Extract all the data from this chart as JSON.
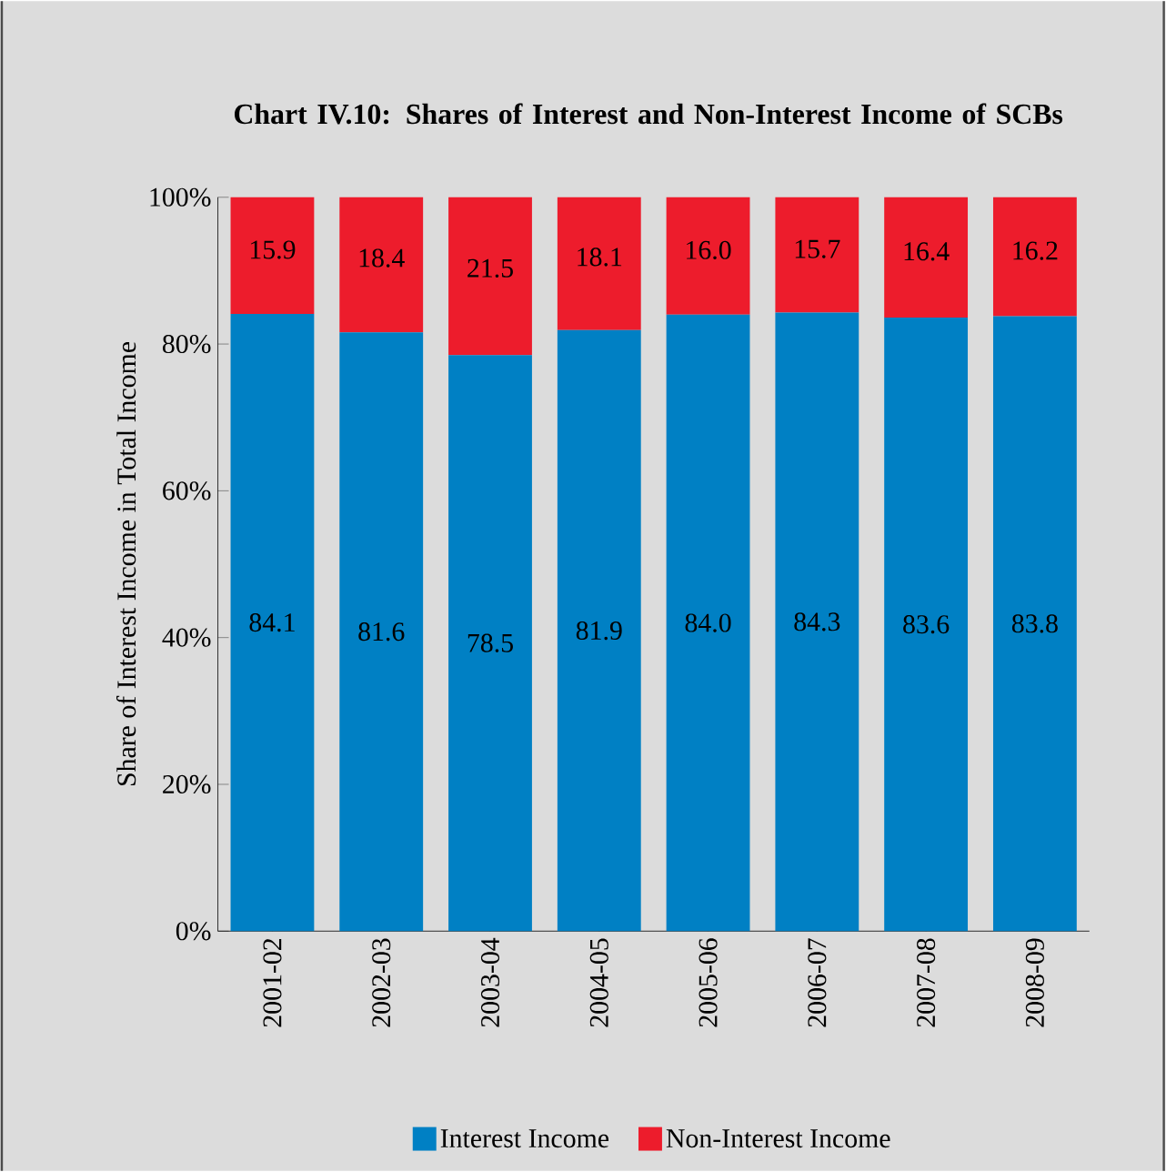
{
  "chart_data": {
    "type": "bar",
    "stacked": true,
    "title": "Chart IV.10: Shares of Interest and Non-Interest Income of SCBs",
    "ylabel": "Share of Interest Income in Total Income",
    "categories": [
      "2001-02",
      "2002-03",
      "2003-04",
      "2004-05",
      "2005-06",
      "2006-07",
      "2007-08",
      "2008-09"
    ],
    "series": [
      {
        "name": "Interest Income",
        "color": "#0080c4",
        "values": [
          84.1,
          81.6,
          78.5,
          81.9,
          84.0,
          84.3,
          83.6,
          83.8
        ],
        "value_labels": [
          "84.1",
          "81.6",
          "78.5",
          "81.9",
          "84.0",
          "84.3",
          "83.6",
          "83.8"
        ]
      },
      {
        "name": "Non-Interest Income",
        "color": "#ed1c2c",
        "values": [
          15.9,
          18.4,
          21.5,
          18.1,
          16.0,
          15.7,
          16.4,
          16.2
        ],
        "value_labels": [
          "15.9",
          "18.4",
          "21.5",
          "18.1",
          "16.0",
          "15.7",
          "16.4",
          "16.2"
        ]
      }
    ],
    "ylim": [
      0,
      100
    ],
    "yticks": [
      {
        "value": 0,
        "label": "0%"
      },
      {
        "value": 20,
        "label": "20%"
      },
      {
        "value": 40,
        "label": "40%"
      },
      {
        "value": 60,
        "label": "60%"
      },
      {
        "value": 80,
        "label": "80%"
      },
      {
        "value": 100,
        "label": "100%"
      }
    ],
    "legend": "bottom",
    "grid": false
  }
}
